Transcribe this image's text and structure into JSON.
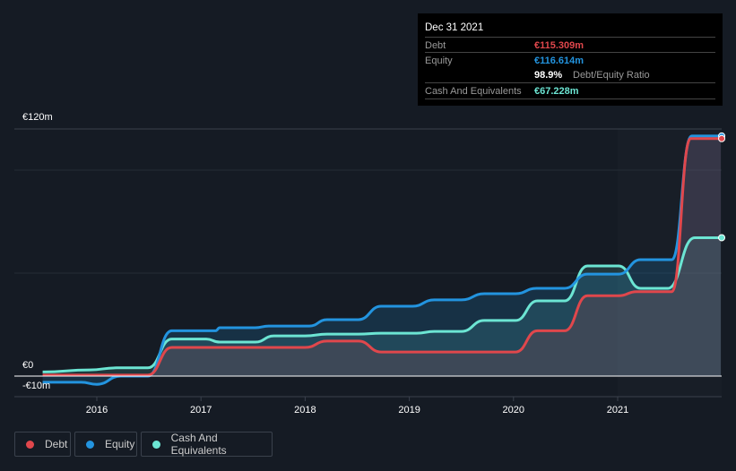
{
  "tooltip": {
    "date": "Dec 31 2021",
    "debt_label": "Debt",
    "debt_value": "€115.309m",
    "equity_label": "Equity",
    "equity_value": "€116.614m",
    "ratio_value": "98.9%",
    "ratio_label": "Debt/Equity Ratio",
    "cash_label": "Cash And Equivalents",
    "cash_value": "€67.228m"
  },
  "colors": {
    "debt": "#e0474c",
    "equity": "#2394df",
    "cash": "#6ce5d3"
  },
  "chart_data": {
    "type": "area",
    "ylabels": {
      "top": "€120m",
      "zero": "€0",
      "neg": "-€10m"
    },
    "ylim": [
      -10,
      120
    ],
    "xlim": [
      2015.45,
      2022.0
    ],
    "xticks": [
      {
        "v": 2016,
        "l": "2016"
      },
      {
        "v": 2017,
        "l": "2017"
      },
      {
        "v": 2018,
        "l": "2018"
      },
      {
        "v": 2019,
        "l": "2019"
      },
      {
        "v": 2020,
        "l": "2020"
      },
      {
        "v": 2021,
        "l": "2021"
      }
    ],
    "series": [
      {
        "name": "Cash And Equivalents",
        "key": "cash",
        "points": [
          [
            2015.48,
            2
          ],
          [
            2015.93,
            3
          ],
          [
            2016.19,
            4
          ],
          [
            2016.49,
            4
          ],
          [
            2016.72,
            18
          ],
          [
            2017.05,
            18
          ],
          [
            2017.18,
            16.5
          ],
          [
            2017.52,
            16.5
          ],
          [
            2017.7,
            19.5
          ],
          [
            2018.0,
            19.5
          ],
          [
            2018.21,
            20.4
          ],
          [
            2018.51,
            20.4
          ],
          [
            2018.73,
            20.8
          ],
          [
            2019.07,
            20.8
          ],
          [
            2019.24,
            21.7
          ],
          [
            2019.5,
            21.7
          ],
          [
            2019.72,
            27
          ],
          [
            2020.02,
            27
          ],
          [
            2020.23,
            36.5
          ],
          [
            2020.49,
            36.5
          ],
          [
            2020.71,
            53.5
          ],
          [
            2021.01,
            53.5
          ],
          [
            2021.22,
            42.6
          ],
          [
            2021.48,
            42.6
          ],
          [
            2021.74,
            67.2
          ],
          [
            2021.99,
            67.2
          ]
        ]
      },
      {
        "name": "Equity",
        "key": "equity",
        "points": [
          [
            2015.48,
            -3
          ],
          [
            2015.85,
            -3
          ],
          [
            2016.0,
            -4
          ],
          [
            2016.23,
            0
          ],
          [
            2016.49,
            0
          ],
          [
            2016.72,
            22
          ],
          [
            2017.14,
            22
          ],
          [
            2017.18,
            23.5
          ],
          [
            2017.52,
            23.5
          ],
          [
            2017.65,
            24.3
          ],
          [
            2018.04,
            24.3
          ],
          [
            2018.21,
            27.4
          ],
          [
            2018.51,
            27.4
          ],
          [
            2018.73,
            33.9
          ],
          [
            2019.03,
            33.9
          ],
          [
            2019.24,
            37
          ],
          [
            2019.5,
            37
          ],
          [
            2019.72,
            40
          ],
          [
            2020.02,
            40
          ],
          [
            2020.22,
            42.6
          ],
          [
            2020.49,
            42.6
          ],
          [
            2020.71,
            49.5
          ],
          [
            2021.01,
            49.5
          ],
          [
            2021.22,
            56.5
          ],
          [
            2021.52,
            56.5
          ],
          [
            2021.71,
            116.6
          ],
          [
            2021.99,
            116.6
          ]
        ]
      },
      {
        "name": "Debt",
        "key": "debt",
        "points": [
          [
            2015.48,
            0.5
          ],
          [
            2016.49,
            0.5
          ],
          [
            2016.72,
            13.9
          ],
          [
            2018.0,
            13.9
          ],
          [
            2018.21,
            17
          ],
          [
            2018.51,
            17
          ],
          [
            2018.73,
            11.7
          ],
          [
            2020.02,
            11.7
          ],
          [
            2020.23,
            22
          ],
          [
            2020.49,
            22
          ],
          [
            2020.71,
            39
          ],
          [
            2021.01,
            39
          ],
          [
            2021.18,
            41
          ],
          [
            2021.52,
            41
          ],
          [
            2021.7,
            115.3
          ],
          [
            2021.99,
            115.3
          ]
        ]
      }
    ],
    "legend": [
      "Debt",
      "Equity",
      "Cash And Equivalents"
    ]
  }
}
